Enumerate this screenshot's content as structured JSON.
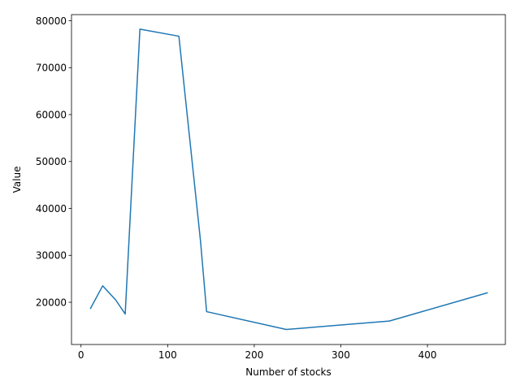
{
  "chart_data": {
    "type": "line",
    "xlabel": "Number of stocks",
    "ylabel": "Value",
    "xlim": [
      -11,
      490
    ],
    "ylim": [
      11000,
      81300
    ],
    "xticks": [
      0,
      100,
      200,
      300,
      400
    ],
    "yticks": [
      20000,
      30000,
      40000,
      50000,
      60000,
      70000,
      80000
    ],
    "grid": false,
    "series": [
      {
        "color": "#1f77b4",
        "x": [
          11,
          25,
          40,
          51,
          68,
          113,
          138,
          145,
          237,
          356,
          469
        ],
        "y": [
          18700,
          23500,
          20500,
          17500,
          78200,
          76700,
          33000,
          18000,
          14200,
          16000,
          22000
        ]
      }
    ]
  }
}
